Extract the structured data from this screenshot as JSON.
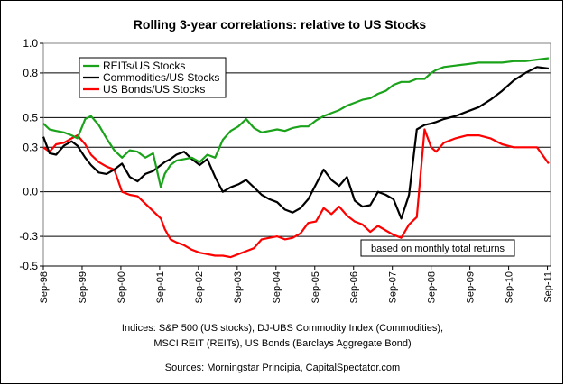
{
  "chart_data": {
    "type": "line",
    "title": "Rolling 3-year correlations: relative to US Stocks",
    "xlabel": "",
    "ylabel": "",
    "ylim": [
      -0.5,
      1.0
    ],
    "yticks": [
      -0.5,
      -0.3,
      0.0,
      0.3,
      0.5,
      0.8,
      1.0
    ],
    "ytick_labels": [
      "-0.5",
      "-0.3",
      "0.0",
      "0.3",
      "0.5",
      "0.8",
      "1.0"
    ],
    "xlim": [
      1998.67,
      2011.75
    ],
    "xticks": [
      1998.67,
      1999.67,
      2000.67,
      2001.67,
      2002.67,
      2003.67,
      2004.67,
      2005.67,
      2006.67,
      2007.67,
      2008.67,
      2009.67,
      2010.67,
      2011.67
    ],
    "xtick_labels": [
      "Sep-98",
      "Sep-99",
      "Sep-00",
      "Sep-01",
      "Sep-02",
      "Sep-03",
      "Sep-04",
      "Sep-05",
      "Sep-06",
      "Sep-07",
      "Sep-08",
      "Sep-09",
      "Sep-10",
      "Sep-11"
    ],
    "grid": "horizontal",
    "legend_position": "top-left",
    "annotation": "based on monthly total returns",
    "series": [
      {
        "name": "REITs/US Stocks",
        "color": "#1aa31a",
        "x": [
          1998.67,
          1998.83,
          1999.0,
          1999.2,
          1999.4,
          1999.55,
          1999.75,
          1999.9,
          2000.1,
          2000.3,
          2000.5,
          2000.7,
          2000.9,
          2001.1,
          2001.3,
          2001.5,
          2001.7,
          2001.8,
          2001.95,
          2002.1,
          2002.3,
          2002.5,
          2002.7,
          2002.9,
          2003.1,
          2003.3,
          2003.5,
          2003.7,
          2003.9,
          2004.1,
          2004.3,
          2004.5,
          2004.7,
          2004.9,
          2005.1,
          2005.3,
          2005.5,
          2005.7,
          2005.9,
          2006.1,
          2006.3,
          2006.5,
          2006.7,
          2006.9,
          2007.1,
          2007.3,
          2007.5,
          2007.7,
          2007.9,
          2008.1,
          2008.3,
          2008.5,
          2008.67,
          2008.8,
          2009.0,
          2009.3,
          2009.6,
          2009.9,
          2010.2,
          2010.5,
          2010.8,
          2011.1,
          2011.4,
          2011.7
        ],
        "values": [
          0.46,
          0.42,
          0.41,
          0.4,
          0.38,
          0.36,
          0.49,
          0.51,
          0.45,
          0.36,
          0.28,
          0.23,
          0.28,
          0.27,
          0.23,
          0.26,
          0.03,
          0.12,
          0.18,
          0.21,
          0.22,
          0.23,
          0.2,
          0.25,
          0.23,
          0.35,
          0.41,
          0.44,
          0.49,
          0.43,
          0.4,
          0.41,
          0.42,
          0.41,
          0.43,
          0.44,
          0.44,
          0.48,
          0.51,
          0.53,
          0.55,
          0.58,
          0.6,
          0.62,
          0.63,
          0.66,
          0.68,
          0.72,
          0.74,
          0.74,
          0.76,
          0.76,
          0.8,
          0.82,
          0.84,
          0.85,
          0.86,
          0.87,
          0.87,
          0.87,
          0.88,
          0.88,
          0.89,
          0.9
        ]
      },
      {
        "name": "Commodities/US Stocks",
        "color": "#000000",
        "x": [
          1998.67,
          1998.83,
          1999.0,
          1999.2,
          1999.4,
          1999.55,
          1999.75,
          1999.9,
          2000.1,
          2000.3,
          2000.5,
          2000.7,
          2000.9,
          2001.1,
          2001.3,
          2001.5,
          2001.7,
          2001.8,
          2001.95,
          2002.1,
          2002.3,
          2002.5,
          2002.7,
          2002.9,
          2003.1,
          2003.3,
          2003.5,
          2003.7,
          2003.9,
          2004.1,
          2004.3,
          2004.5,
          2004.7,
          2004.9,
          2005.1,
          2005.3,
          2005.5,
          2005.7,
          2005.9,
          2006.1,
          2006.3,
          2006.5,
          2006.7,
          2006.9,
          2007.1,
          2007.3,
          2007.5,
          2007.7,
          2007.9,
          2008.1,
          2008.3,
          2008.5,
          2008.67,
          2008.8,
          2009.0,
          2009.3,
          2009.6,
          2009.9,
          2010.2,
          2010.5,
          2010.8,
          2011.1,
          2011.4,
          2011.7
        ],
        "values": [
          0.37,
          0.26,
          0.25,
          0.31,
          0.34,
          0.31,
          0.23,
          0.18,
          0.13,
          0.12,
          0.15,
          0.19,
          0.1,
          0.07,
          0.12,
          0.14,
          0.18,
          0.2,
          0.22,
          0.25,
          0.27,
          0.22,
          0.18,
          0.22,
          0.1,
          0.0,
          0.03,
          0.05,
          0.08,
          0.03,
          -0.02,
          -0.05,
          -0.07,
          -0.12,
          -0.14,
          -0.11,
          -0.05,
          0.05,
          0.15,
          0.08,
          0.04,
          0.1,
          -0.06,
          -0.1,
          -0.09,
          0.0,
          -0.02,
          -0.05,
          -0.18,
          -0.02,
          0.42,
          0.45,
          0.46,
          0.47,
          0.49,
          0.51,
          0.54,
          0.57,
          0.62,
          0.68,
          0.75,
          0.8,
          0.84,
          0.83
        ]
      },
      {
        "name": "US Bonds/US Stocks",
        "color": "#ff0000",
        "x": [
          1998.67,
          1998.83,
          1999.0,
          1999.2,
          1999.4,
          1999.55,
          1999.75,
          1999.9,
          2000.1,
          2000.3,
          2000.5,
          2000.7,
          2000.9,
          2001.1,
          2001.3,
          2001.5,
          2001.7,
          2001.8,
          2001.95,
          2002.1,
          2002.3,
          2002.5,
          2002.7,
          2002.9,
          2003.1,
          2003.3,
          2003.5,
          2003.7,
          2003.9,
          2004.1,
          2004.3,
          2004.5,
          2004.7,
          2004.9,
          2005.1,
          2005.3,
          2005.5,
          2005.7,
          2005.9,
          2006.1,
          2006.3,
          2006.5,
          2006.7,
          2006.9,
          2007.1,
          2007.3,
          2007.5,
          2007.7,
          2007.9,
          2008.1,
          2008.3,
          2008.5,
          2008.67,
          2008.8,
          2009.0,
          2009.3,
          2009.6,
          2009.9,
          2010.2,
          2010.5,
          2010.8,
          2011.1,
          2011.4,
          2011.7
        ],
        "values": [
          0.3,
          0.27,
          0.32,
          0.33,
          0.36,
          0.38,
          0.32,
          0.25,
          0.2,
          0.17,
          0.15,
          0.0,
          -0.02,
          -0.03,
          -0.08,
          -0.13,
          -0.18,
          -0.25,
          -0.32,
          -0.34,
          -0.36,
          -0.39,
          -0.41,
          -0.42,
          -0.43,
          -0.43,
          -0.44,
          -0.42,
          -0.4,
          -0.38,
          -0.32,
          -0.31,
          -0.3,
          -0.32,
          -0.31,
          -0.28,
          -0.21,
          -0.2,
          -0.11,
          -0.15,
          -0.1,
          -0.16,
          -0.2,
          -0.22,
          -0.27,
          -0.23,
          -0.26,
          -0.29,
          -0.31,
          -0.22,
          -0.17,
          0.42,
          0.3,
          0.27,
          0.33,
          0.36,
          0.38,
          0.38,
          0.36,
          0.32,
          0.3,
          0.3,
          0.3,
          0.19
        ]
      }
    ]
  },
  "footer": {
    "line1": "Indices: S&P 500 (US stocks), DJ-UBS Commodity Index (Commodities),",
    "line2": "MSCI REIT (REITs), US Bonds (Barclays Aggregate Bond)",
    "line3": "Sources: Morningstar Principia, CapitalSpectator.com"
  }
}
